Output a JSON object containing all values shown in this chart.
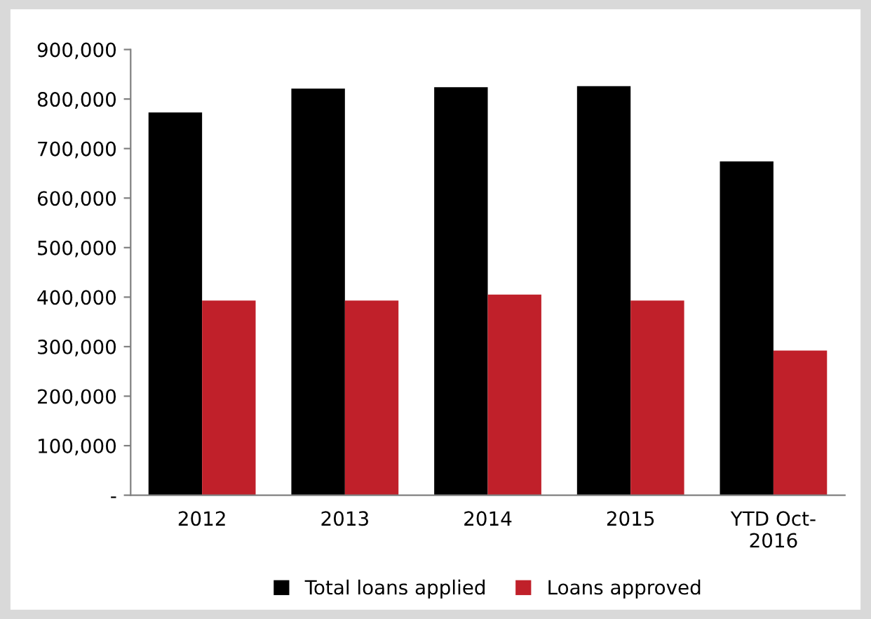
{
  "chart_data": {
    "type": "bar",
    "categories": [
      "2012",
      "2013",
      "2014",
      "2015",
      "YTD Oct-\n2016"
    ],
    "series": [
      {
        "name": "Total loans applied",
        "color": "#000000",
        "values": [
          773000,
          821000,
          824000,
          826000,
          674000
        ]
      },
      {
        "name": "Loans approved",
        "color": "#c0202a",
        "values": [
          393000,
          393000,
          405000,
          393000,
          292000
        ]
      }
    ],
    "ylim": [
      0,
      900000
    ],
    "yticks": [
      {
        "value": 0,
        "label": "-"
      },
      {
        "value": 100000,
        "label": "100,000"
      },
      {
        "value": 200000,
        "label": "200,000"
      },
      {
        "value": 300000,
        "label": "300,000"
      },
      {
        "value": 400000,
        "label": "400,000"
      },
      {
        "value": 500000,
        "label": "500,000"
      },
      {
        "value": 600000,
        "label": "600,000"
      },
      {
        "value": 700000,
        "label": "700,000"
      },
      {
        "value": 800000,
        "label": "800,000"
      },
      {
        "value": 900000,
        "label": "900,000"
      }
    ],
    "grid": false,
    "legend": "bottom"
  }
}
